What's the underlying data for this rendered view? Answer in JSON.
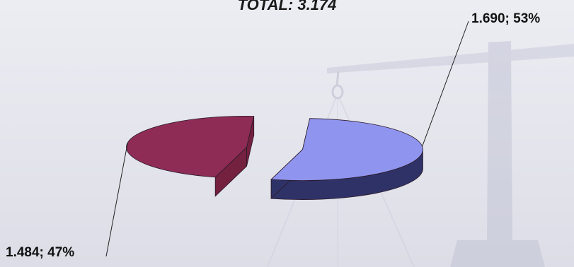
{
  "chart_data": {
    "type": "pie",
    "title": "TOTAL: 3.174",
    "categories": [
      "",
      ""
    ],
    "values": [
      1484,
      1690
    ],
    "labels": [
      "1.484; 47%",
      "1.690; 53%"
    ],
    "colors": [
      "#8e2c56",
      "#8f94ee"
    ],
    "side_colors": [
      "#74203f",
      "#2f3266"
    ],
    "exploded": true,
    "style": "3d"
  }
}
